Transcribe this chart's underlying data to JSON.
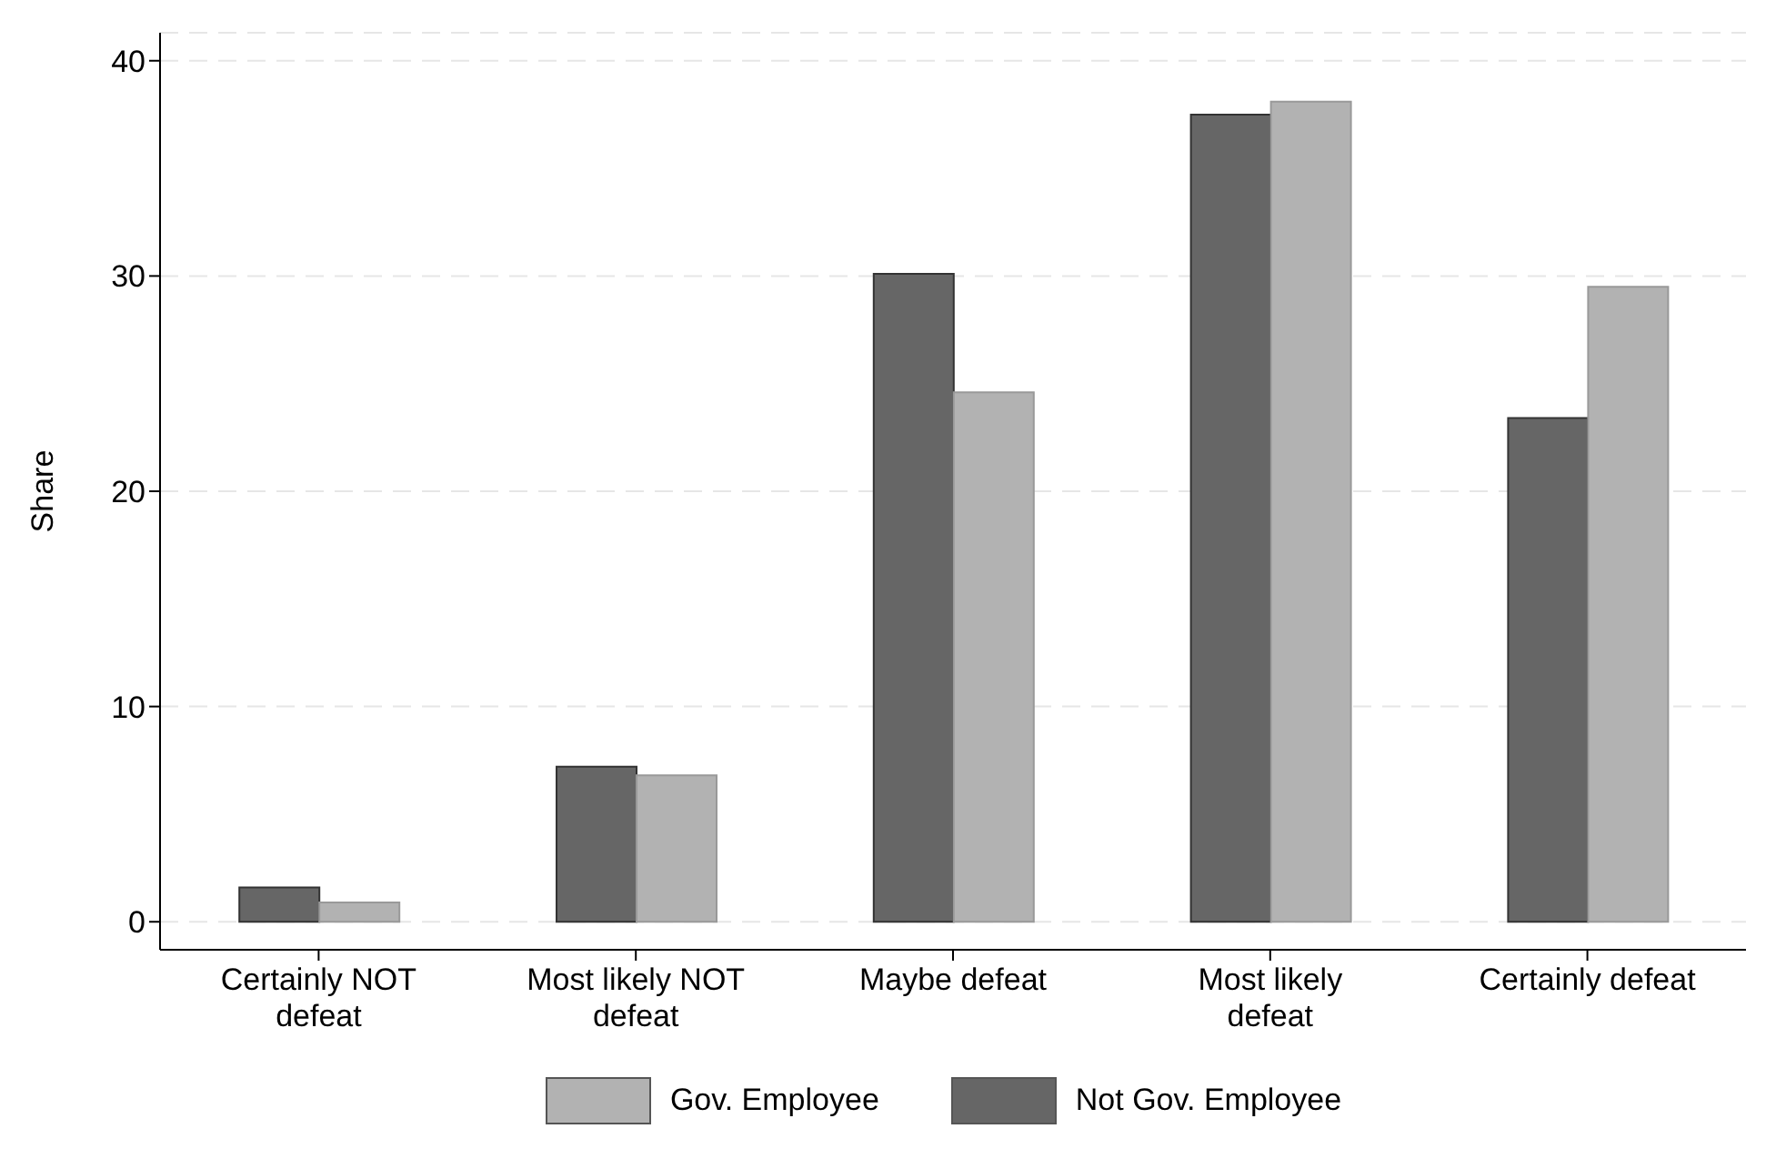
{
  "chart_data": {
    "type": "bar",
    "ylabel": "Share",
    "categories": [
      "Certainly NOT defeat",
      "Most likely NOT defeat",
      "Maybe defeat",
      "Most likely defeat",
      "Certainly defeat"
    ],
    "series": [
      {
        "name": "Not Gov. Employee",
        "color": "#666666",
        "values": [
          1.6,
          7.2,
          30.1,
          37.5,
          23.4
        ]
      },
      {
        "name": "Gov. Employee",
        "color": "#b2b2b2",
        "values": [
          0.9,
          6.8,
          24.6,
          38.1,
          29.5
        ]
      }
    ],
    "ylim": [
      -1.3,
      41.3
    ],
    "yticks": [
      0,
      10,
      20,
      30,
      40
    ],
    "grid": "y",
    "legend": "bottom"
  }
}
